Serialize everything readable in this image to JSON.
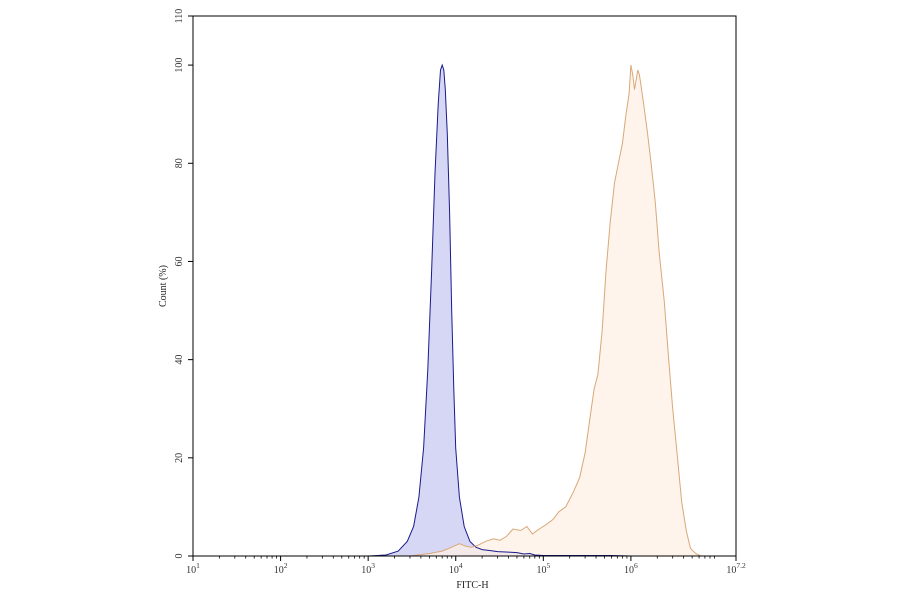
{
  "chart_data": {
    "type": "area",
    "xlabel": "FITC-H",
    "ylabel": "Count (%)",
    "xscale": "log10",
    "xlim": [
      10,
      15848932
    ],
    "ylim": [
      0,
      110
    ],
    "x_ticks": [
      {
        "value": 10,
        "base": "10",
        "exp": "1"
      },
      {
        "value": 100,
        "base": "10",
        "exp": "2"
      },
      {
        "value": 1000,
        "base": "10",
        "exp": "3"
      },
      {
        "value": 10000,
        "base": "10",
        "exp": "4"
      },
      {
        "value": 100000,
        "base": "10",
        "exp": "5"
      },
      {
        "value": 1000000,
        "base": "10",
        "exp": "6"
      },
      {
        "value": 15848932,
        "base": "10",
        "exp": "7.2"
      }
    ],
    "y_ticks": [
      {
        "value": 0,
        "label": "0"
      },
      {
        "value": 20,
        "label": "20"
      },
      {
        "value": 40,
        "label": "40"
      },
      {
        "value": 60,
        "label": "60"
      },
      {
        "value": 80,
        "label": "80"
      },
      {
        "value": 100,
        "label": "100"
      },
      {
        "value": 110,
        "label": "110"
      }
    ],
    "grid": false,
    "series": [
      {
        "stroke": "#1a1a8c",
        "fill": "#c8c8f2",
        "x": [
          10,
          1000,
          1600,
          2200,
          2800,
          3300,
          3800,
          4300,
          4800,
          5300,
          5800,
          6300,
          6700,
          7000,
          7300,
          7600,
          8000,
          8500,
          9000,
          9500,
          10000,
          11000,
          12500,
          14500,
          17000,
          20000,
          25000,
          30000,
          40000,
          50000,
          60000,
          70000,
          80000,
          100000,
          150000,
          300000,
          600000,
          1000000,
          15848932
        ],
        "y": [
          0,
          0,
          0.2,
          1,
          3,
          6,
          12,
          22,
          38,
          58,
          78,
          92,
          99,
          100,
          99,
          95,
          86,
          70,
          50,
          34,
          22,
          12,
          6,
          3,
          1.8,
          1.3,
          1.1,
          0.9,
          0.8,
          0.7,
          0.4,
          0.5,
          0.2,
          0.1,
          0.1,
          0.1,
          0.1,
          0,
          0
        ]
      },
      {
        "stroke": "#d8a878",
        "fill": "#fdf0e4",
        "x": [
          10,
          3000,
          5000,
          7000,
          9000,
          11000,
          13000,
          15000,
          18000,
          22000,
          27000,
          32000,
          38000,
          45000,
          55000,
          65000,
          75000,
          90000,
          110000,
          130000,
          150000,
          180000,
          220000,
          260000,
          300000,
          340000,
          380000,
          420000,
          470000,
          520000,
          580000,
          650000,
          720000,
          800000,
          880000,
          950000,
          1000000,
          1050000,
          1100000,
          1150000,
          1200000,
          1250000,
          1300000,
          1400000,
          1550000,
          1700000,
          1900000,
          2100000,
          2400000,
          2700000,
          3000000,
          3400000,
          3800000,
          4300000,
          4800000,
          5500000,
          6300000,
          15848932
        ],
        "y": [
          0,
          0,
          0.5,
          1,
          1.8,
          2.5,
          2,
          1.8,
          2.2,
          3,
          3.5,
          3.2,
          4,
          5.5,
          5.2,
          6,
          4.5,
          5.5,
          6.5,
          7.5,
          9,
          10,
          13,
          16,
          21,
          28,
          34,
          37,
          46,
          58,
          68,
          76,
          80,
          84,
          90,
          94,
          100,
          98,
          95,
          97,
          99,
          98,
          96,
          92,
          86,
          80,
          72,
          62,
          52,
          40,
          30,
          20,
          11,
          5,
          1.5,
          0.5,
          0,
          0
        ]
      }
    ]
  }
}
